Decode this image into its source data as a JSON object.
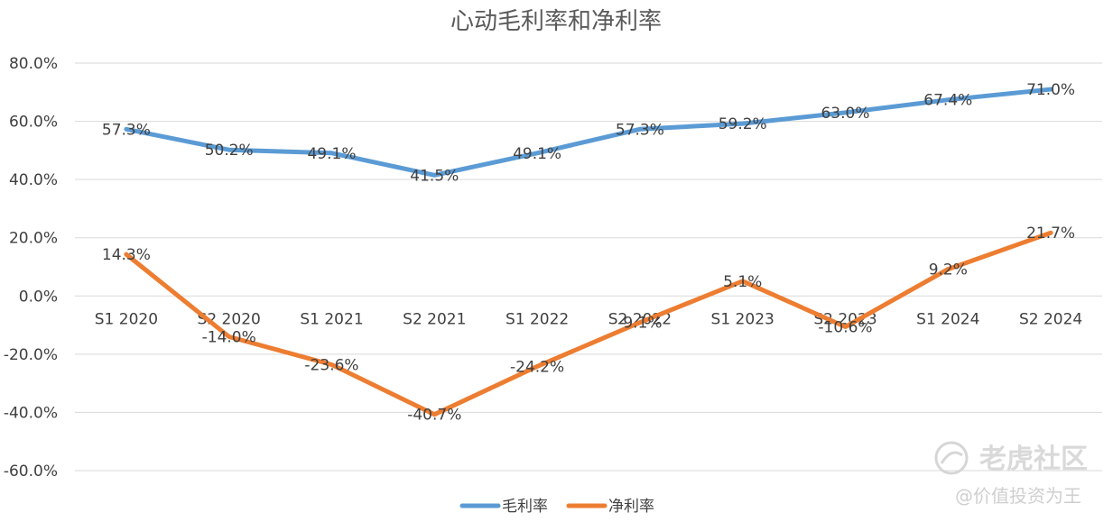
{
  "chart_data": {
    "type": "line",
    "title": "心动毛利率和净利率",
    "categories": [
      "S1 2020",
      "S2 2020",
      "S1 2021",
      "S2 2021",
      "S1 2022",
      "S2 2022",
      "S1 2023",
      "S2 2023",
      "S1 2024",
      "S2 2024"
    ],
    "ylim": [
      -60,
      80
    ],
    "yticks": [
      "80.0%",
      "60.0%",
      "40.0%",
      "20.0%",
      "0.0%",
      "-20.0%",
      "-40.0%",
      "-60.0%"
    ],
    "ytick_values": [
      80,
      60,
      40,
      20,
      0,
      -20,
      -40,
      -60
    ],
    "grid": true,
    "legend_position": "bottom",
    "series": [
      {
        "name": "毛利率",
        "color": "#5b9bd5",
        "values": [
          57.3,
          50.2,
          49.1,
          41.5,
          49.1,
          57.3,
          59.2,
          63.0,
          67.4,
          71.0
        ],
        "labels": [
          "57.3%",
          "50.2%",
          "49.1%",
          "41.5%",
          "49.1%",
          "57.3%",
          "59.2%",
          "63.0%",
          "67.4%",
          "71.0%"
        ]
      },
      {
        "name": "净利率",
        "color": "#ed7d31",
        "values": [
          14.3,
          -14.0,
          -23.6,
          -40.7,
          -24.2,
          -9.1,
          5.1,
          -10.6,
          9.2,
          21.7
        ],
        "labels": [
          "14.3%",
          "-14.0%",
          "-23.6%",
          "-40.7%",
          "-24.2%",
          "-9.1%",
          "5.1%",
          "-10.6%",
          "9.2%",
          "21.7%"
        ]
      }
    ]
  },
  "watermark": {
    "brand": "老虎社区",
    "author": "@价值投资为王",
    "icon": "tiger-logo-icon"
  }
}
